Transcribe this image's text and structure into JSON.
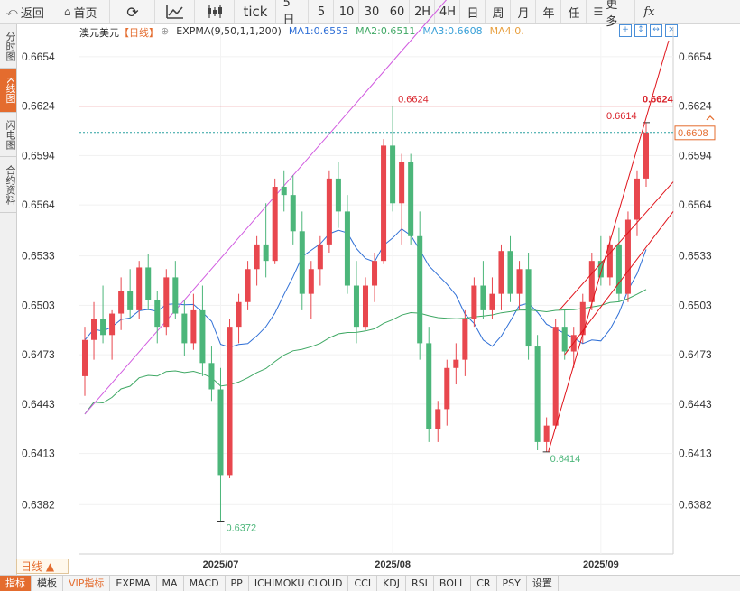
{
  "toolbar": {
    "back": "返回",
    "home": "首页",
    "tick": "tick",
    "periods": [
      "5日",
      "5",
      "10",
      "30",
      "60",
      "2H",
      "4H",
      "日",
      "周",
      "月",
      "年",
      "任"
    ],
    "more": "更多",
    "fx": "fx"
  },
  "sidebar": {
    "tabs": [
      "分时图",
      "K线图",
      "闪电图",
      "合约资料"
    ]
  },
  "legend": {
    "symbol": "澳元美元",
    "period": "【日线】",
    "ema": "EXPMA(9,50,1,1,200)",
    "ma1": "MA1:0.6553",
    "ma2": "MA2:0.6511",
    "ma3": "MA3:0.6608",
    "ma4": "MA4:0."
  },
  "colors": {
    "up": "#e8474e",
    "down": "#4cb67a",
    "ma1": "#2f6fd6",
    "ma2": "#3fa864",
    "ma3": "#39a0d8",
    "ma4": "#d15be0",
    "accent": "#e46c2e",
    "resistance": "#d9232b",
    "channel": "#e0141b"
  },
  "chart_data": {
    "type": "candlestick",
    "ylim": [
      0.6352,
      0.6672
    ],
    "y_ticks": [
      "0.6654",
      "0.6624",
      "0.6594",
      "0.6564",
      "0.6533",
      "0.6503",
      "0.6473",
      "0.6443",
      "0.6413",
      "0.6382"
    ],
    "x_labels": [
      "2025/07",
      "2025/08",
      "2025/09"
    ],
    "annotations": {
      "high": "0.6624",
      "recent_high": "0.6614",
      "resistance": "0.6624",
      "low1": "0.6372",
      "low2": "0.6414",
      "last_price": "0.6608"
    },
    "candles": [
      [
        0.646,
        0.649,
        0.6448,
        0.6482
      ],
      [
        0.6482,
        0.6505,
        0.647,
        0.6495
      ],
      [
        0.6495,
        0.6515,
        0.648,
        0.6485
      ],
      [
        0.6485,
        0.65,
        0.647,
        0.6498
      ],
      [
        0.6498,
        0.652,
        0.6488,
        0.6512
      ],
      [
        0.6512,
        0.6525,
        0.6495,
        0.65
      ],
      [
        0.65,
        0.653,
        0.6495,
        0.6526
      ],
      [
        0.6526,
        0.6534,
        0.65,
        0.6506
      ],
      [
        0.6506,
        0.6512,
        0.648,
        0.649
      ],
      [
        0.649,
        0.6525,
        0.6485,
        0.652
      ],
      [
        0.652,
        0.653,
        0.6495,
        0.6498
      ],
      [
        0.6498,
        0.6506,
        0.6472,
        0.648
      ],
      [
        0.648,
        0.651,
        0.6476,
        0.65
      ],
      [
        0.65,
        0.6515,
        0.646,
        0.6468
      ],
      [
        0.6468,
        0.6478,
        0.6445,
        0.6452
      ],
      [
        0.6452,
        0.6465,
        0.6372,
        0.64
      ],
      [
        0.64,
        0.6495,
        0.6398,
        0.649
      ],
      [
        0.649,
        0.651,
        0.648,
        0.6505
      ],
      [
        0.6505,
        0.653,
        0.65,
        0.6525
      ],
      [
        0.6525,
        0.6545,
        0.6515,
        0.654
      ],
      [
        0.654,
        0.6565,
        0.652,
        0.653
      ],
      [
        0.653,
        0.658,
        0.6528,
        0.6575
      ],
      [
        0.6575,
        0.6585,
        0.656,
        0.657
      ],
      [
        0.657,
        0.6582,
        0.654,
        0.6548
      ],
      [
        0.6548,
        0.656,
        0.65,
        0.651
      ],
      [
        0.651,
        0.653,
        0.6495,
        0.6525
      ],
      [
        0.6525,
        0.6545,
        0.6515,
        0.654
      ],
      [
        0.654,
        0.6585,
        0.6535,
        0.658
      ],
      [
        0.658,
        0.659,
        0.655,
        0.656
      ],
      [
        0.656,
        0.657,
        0.651,
        0.6515
      ],
      [
        0.6515,
        0.653,
        0.648,
        0.649
      ],
      [
        0.649,
        0.652,
        0.6488,
        0.6515
      ],
      [
        0.6515,
        0.6535,
        0.6505,
        0.653
      ],
      [
        0.653,
        0.6604,
        0.6528,
        0.66
      ],
      [
        0.66,
        0.6624,
        0.656,
        0.6565
      ],
      [
        0.6565,
        0.6595,
        0.654,
        0.659
      ],
      [
        0.659,
        0.6595,
        0.654,
        0.6545
      ],
      [
        0.6545,
        0.656,
        0.647,
        0.648
      ],
      [
        0.648,
        0.649,
        0.642,
        0.6428
      ],
      [
        0.6428,
        0.6445,
        0.642,
        0.644
      ],
      [
        0.644,
        0.647,
        0.643,
        0.6465
      ],
      [
        0.6465,
        0.648,
        0.6455,
        0.647
      ],
      [
        0.647,
        0.65,
        0.646,
        0.6495
      ],
      [
        0.6495,
        0.652,
        0.649,
        0.6515
      ],
      [
        0.6515,
        0.653,
        0.6495,
        0.65
      ],
      [
        0.65,
        0.652,
        0.6495,
        0.651
      ],
      [
        0.651,
        0.654,
        0.65,
        0.6536
      ],
      [
        0.6536,
        0.6545,
        0.6505,
        0.651
      ],
      [
        0.651,
        0.653,
        0.65,
        0.6525
      ],
      [
        0.6525,
        0.6535,
        0.647,
        0.6478
      ],
      [
        0.6478,
        0.6485,
        0.6415,
        0.642
      ],
      [
        0.642,
        0.6435,
        0.6414,
        0.643
      ],
      [
        0.643,
        0.6495,
        0.6428,
        0.649
      ],
      [
        0.649,
        0.65,
        0.647,
        0.6475
      ],
      [
        0.6475,
        0.649,
        0.6465,
        0.6485
      ],
      [
        0.6485,
        0.651,
        0.648,
        0.6505
      ],
      [
        0.6505,
        0.6535,
        0.65,
        0.653
      ],
      [
        0.653,
        0.6545,
        0.6515,
        0.652
      ],
      [
        0.652,
        0.6545,
        0.6515,
        0.654
      ],
      [
        0.654,
        0.655,
        0.6505,
        0.651
      ],
      [
        0.651,
        0.656,
        0.6505,
        0.6555
      ],
      [
        0.6555,
        0.6585,
        0.6545,
        0.658
      ],
      [
        0.658,
        0.6614,
        0.6575,
        0.6608
      ]
    ]
  },
  "bottom": {
    "period": "日线 ▲",
    "items": [
      "指标",
      "模板",
      "VIP指标",
      "EXPMA",
      "MA",
      "MACD",
      "PP",
      "ICHIMOKU CLOUD",
      "CCI",
      "KDJ",
      "RSI",
      "BOLL",
      "CR",
      "PSY",
      "设置"
    ]
  }
}
